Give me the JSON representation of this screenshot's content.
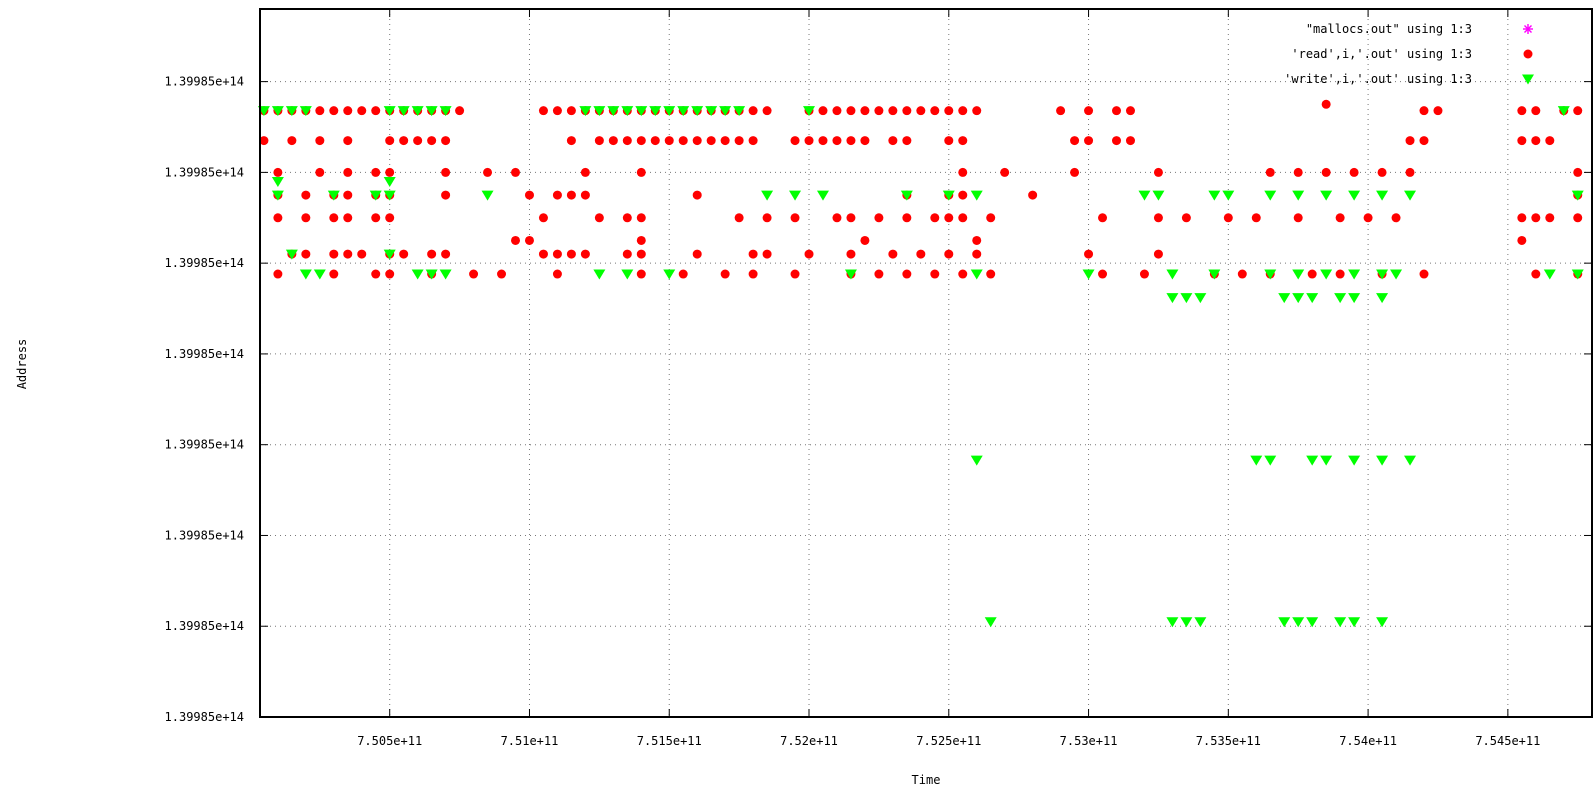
{
  "chart_data": {
    "type": "scatter",
    "xlabel": "Time",
    "ylabel": "Address",
    "xlim": [
      750036000000,
      754801000000
    ],
    "ylim": [
      0,
      7.8
    ],
    "grid": true,
    "legend_position": "top-right",
    "x_ticks": [
      {
        "value": 750500000000,
        "label": "7.505e+11"
      },
      {
        "value": 751000000000,
        "label": "7.51e+11"
      },
      {
        "value": 751500000000,
        "label": "7.515e+11"
      },
      {
        "value": 752000000000,
        "label": "7.52e+11"
      },
      {
        "value": 752500000000,
        "label": "7.525e+11"
      },
      {
        "value": 753000000000,
        "label": "7.53e+11"
      },
      {
        "value": 753500000000,
        "label": "7.535e+11"
      },
      {
        "value": 754000000000,
        "label": "7.54e+11"
      },
      {
        "value": 754500000000,
        "label": "7.545e+11"
      }
    ],
    "y_ticks": [
      {
        "value": 0,
        "label": "1.39985e+14"
      },
      {
        "value": 1,
        "label": "1.39985e+14"
      },
      {
        "value": 2,
        "label": "1.39985e+14"
      },
      {
        "value": 3,
        "label": "1.39985e+14"
      },
      {
        "value": 4,
        "label": "1.39985e+14"
      },
      {
        "value": 5,
        "label": "1.39985e+14"
      },
      {
        "value": 6,
        "label": "1.39985e+14"
      },
      {
        "value": 7,
        "label": "1.39985e+14"
      }
    ],
    "series": [
      {
        "name": "\"mallocs.out\" using 1:3",
        "marker": "star",
        "color": "#ff00ff",
        "points": []
      },
      {
        "name": "'read',i,'.out' using 1:3",
        "marker": "circle",
        "color": "#ff0000",
        "bands": [
          {
            "y": 6.68,
            "x": [
              750050000000,
              750100000000,
              750150000000,
              750200000000,
              750250000000,
              750300000000,
              750350000000,
              750400000000,
              750450000000,
              750500000000,
              750550000000,
              750600000000,
              750650000000,
              750700000000,
              750750000000,
              751050000000,
              751100000000,
              751150000000,
              751200000000,
              751250000000,
              751300000000,
              751350000000,
              751400000000,
              751450000000,
              751500000000,
              751550000000,
              751600000000,
              751650000000,
              751700000000,
              751750000000,
              751800000000,
              751850000000,
              752000000000,
              752050000000,
              752100000000,
              752150000000,
              752200000000,
              752250000000,
              752300000000,
              752350000000,
              752400000000,
              752450000000,
              752500000000,
              752550000000,
              752600000000,
              752900000000,
              753000000000,
              753100000000,
              753150000000,
              754200000000,
              754250000000,
              754550000000,
              754600000000,
              754700000000,
              754750000000
            ]
          },
          {
            "y": 6.35,
            "x": [
              750050000000,
              750150000000,
              750250000000,
              750350000000,
              750500000000,
              750550000000,
              750600000000,
              750650000000,
              750700000000,
              751150000000,
              751250000000,
              751300000000,
              751350000000,
              751400000000,
              751450000000,
              751500000000,
              751550000000,
              751600000000,
              751650000000,
              751700000000,
              751750000000,
              751800000000,
              751950000000,
              752000000000,
              752050000000,
              752100000000,
              752150000000,
              752200000000,
              752300000000,
              752350000000,
              752500000000,
              752550000000,
              752950000000,
              753000000000,
              753100000000,
              753150000000,
              754150000000,
              754200000000,
              754550000000,
              754600000000,
              754650000000
            ]
          },
          {
            "y": 6.0,
            "x": [
              750100000000,
              750250000000,
              750350000000,
              750450000000,
              750500000000,
              750700000000,
              750850000000,
              750950000000,
              751200000000,
              751400000000,
              752550000000,
              752700000000,
              752950000000,
              753250000000,
              753650000000,
              753750000000,
              753850000000,
              753950000000,
              754050000000,
              754150000000,
              754750000000
            ]
          },
          {
            "y": 5.75,
            "x": [
              750100000000,
              750200000000,
              750300000000,
              750350000000,
              750450000000,
              750500000000,
              750700000000,
              751000000000,
              751100000000,
              751150000000,
              751200000000,
              751600000000,
              752350000000,
              752500000000,
              752550000000,
              752800000000,
              754750000000
            ]
          },
          {
            "y": 5.5,
            "x": [
              750100000000,
              750200000000,
              750300000000,
              750350000000,
              750450000000,
              750500000000,
              751050000000,
              751250000000,
              751350000000,
              751400000000,
              751750000000,
              751850000000,
              751950000000,
              752100000000,
              752150000000,
              752250000000,
              752350000000,
              752450000000,
              752500000000,
              752550000000,
              752650000000,
              753050000000,
              753250000000,
              753350000000,
              753500000000,
              753600000000,
              753750000000,
              753900000000,
              754000000000,
              754100000000,
              754550000000,
              754600000000,
              754650000000,
              754750000000
            ]
          },
          {
            "y": 5.25,
            "x": [
              750950000000,
              751000000000,
              751400000000,
              752200000000,
              752600000000,
              754550000000
            ]
          },
          {
            "y": 5.1,
            "x": [
              750150000000,
              750200000000,
              750300000000,
              750350000000,
              750400000000,
              750500000000,
              750550000000,
              750650000000,
              750700000000,
              751050000000,
              751100000000,
              751150000000,
              751200000000,
              751350000000,
              751400000000,
              751600000000,
              751800000000,
              751850000000,
              752000000000,
              752150000000,
              752300000000,
              752400000000,
              752500000000,
              752600000000,
              753000000000,
              753250000000
            ]
          },
          {
            "y": 4.88,
            "x": [
              750100000000,
              750300000000,
              750450000000,
              750500000000,
              750650000000,
              750800000000,
              750900000000,
              751100000000,
              751400000000,
              751550000000,
              751700000000,
              751800000000,
              751950000000,
              752150000000,
              752250000000,
              752350000000,
              752450000000,
              752550000000,
              752650000000,
              753050000000,
              753200000000,
              753450000000,
              753550000000,
              753650000000,
              753800000000,
              753900000000,
              754050000000,
              754200000000,
              754600000000,
              754750000000
            ]
          }
        ],
        "points": [
          [
            753850000000,
            6.75
          ]
        ]
      },
      {
        "name": "'write',i,'.out' using 1:3",
        "marker": "triangle-down",
        "color": "#00ff00",
        "bands": [
          {
            "y": 6.68,
            "x": [
              750050000000,
              750100000000,
              750150000000,
              750200000000,
              750500000000,
              750550000000,
              750600000000,
              750650000000,
              750700000000,
              751200000000,
              751250000000,
              751300000000,
              751350000000,
              751400000000,
              751450000000,
              751500000000,
              751550000000,
              751600000000,
              751650000000,
              751700000000,
              751750000000,
              752000000000,
              754700000000
            ]
          },
          {
            "y": 5.9,
            "x": [
              750100000000,
              750500000000
            ]
          },
          {
            "y": 5.75,
            "x": [
              750100000000,
              750300000000,
              750450000000,
              750500000000,
              750850000000,
              751850000000,
              751950000000,
              752050000000,
              752350000000,
              752500000000,
              752600000000,
              753200000000,
              753250000000,
              753450000000,
              753500000000,
              753650000000,
              753750000000,
              753850000000,
              753950000000,
              754050000000,
              754150000000,
              754750000000
            ]
          },
          {
            "y": 5.1,
            "x": [
              750150000000,
              750500000000
            ]
          },
          {
            "y": 4.88,
            "x": [
              750200000000,
              750250000000,
              750600000000,
              750650000000,
              750700000000,
              751250000000,
              751350000000,
              751500000000,
              752150000000,
              752600000000,
              753000000000,
              753300000000,
              753450000000,
              753650000000,
              753750000000,
              753850000000,
              753950000000,
              754050000000,
              754100000000,
              754650000000,
              754750000000
            ]
          },
          {
            "y": 4.62,
            "x": [
              753300000000,
              753350000000,
              753400000000,
              753700000000,
              753750000000,
              753800000000,
              753900000000,
              753950000000,
              754050000000
            ]
          },
          {
            "y": 2.83,
            "x": [
              752600000000,
              753600000000,
              753650000000,
              753800000000,
              753850000000,
              753950000000,
              754050000000,
              754150000000
            ]
          },
          {
            "y": 1.05,
            "x": [
              752650000000,
              753300000000,
              753350000000,
              753400000000,
              753700000000,
              753750000000,
              753800000000,
              753900000000,
              753950000000,
              754050000000
            ]
          }
        ],
        "points": []
      }
    ]
  }
}
